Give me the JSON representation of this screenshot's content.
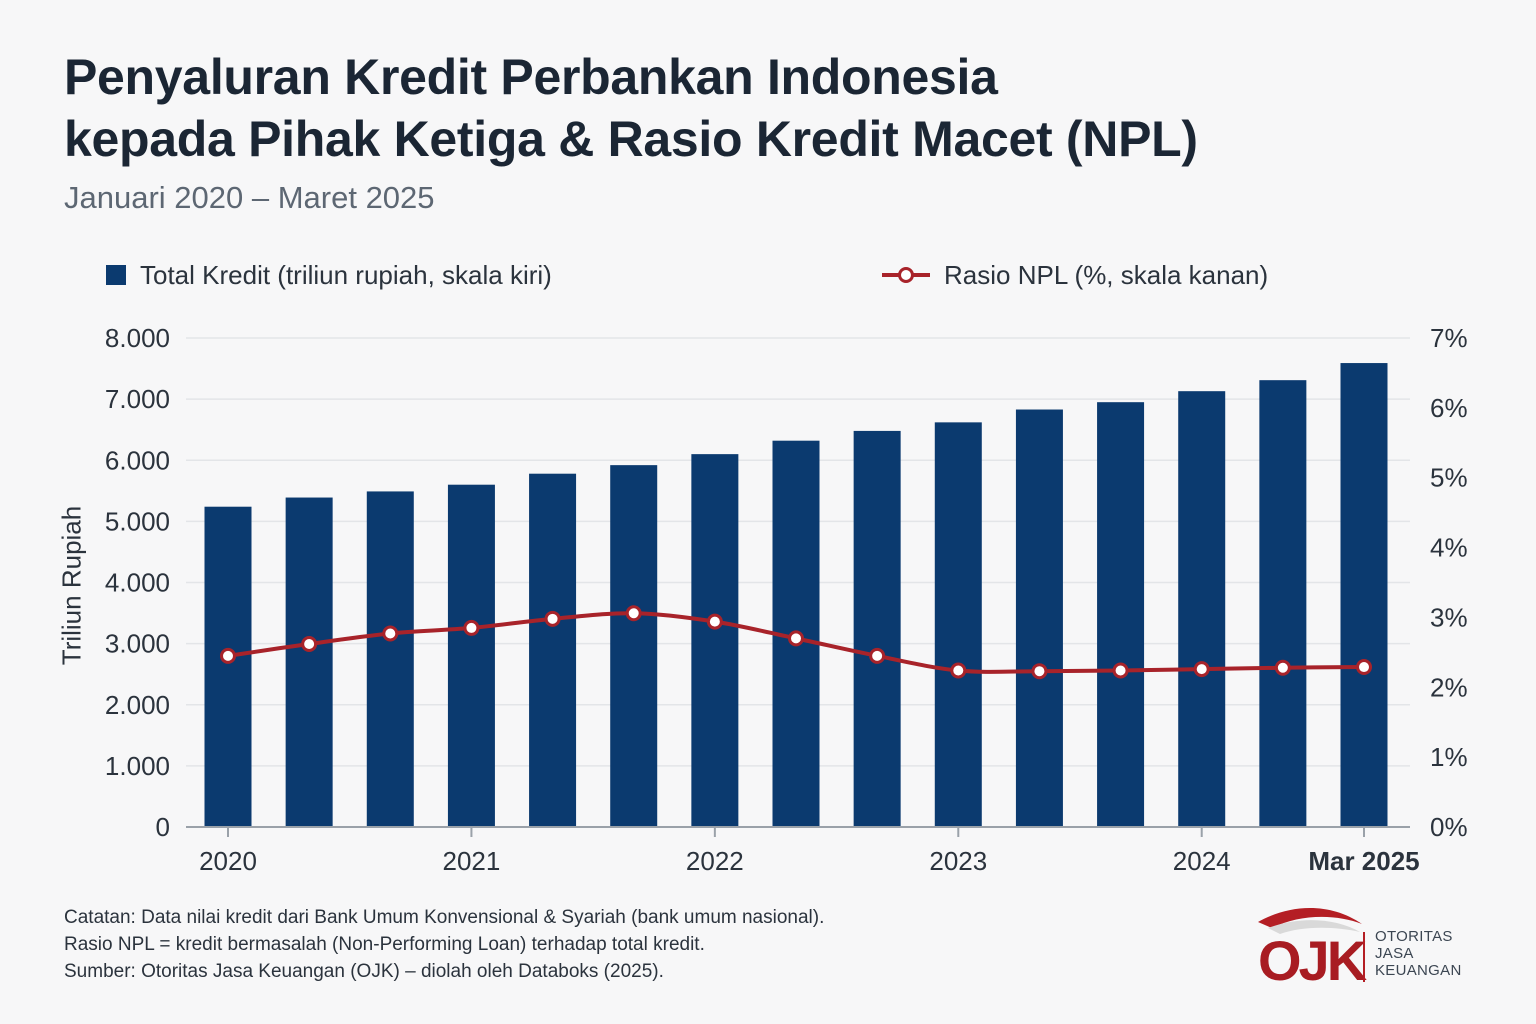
{
  "header": {
    "title_line1": "Penyaluran Kredit Perbankan Indonesia",
    "title_line2": "kepada Pihak Ketiga & Rasio Kredit Macet (NPL)",
    "subtitle": "Januari 2020 – Maret 2025"
  },
  "notes": [
    "Catatan: Data nilai kredit dari Bank Umum Konvensional & Syariah (bank umum nasional).",
    "Rasio NPL = kredit bermasalah (Non-Performing Loan) terhadap total kredit.",
    "Sumber: Otoritas Jasa Keuangan (OJK) – diolah oleh Databoks (2025)."
  ],
  "logo": {
    "mark": "OJK",
    "text_lines": [
      "OTORITAS",
      "JASA",
      "KEUANGAN"
    ],
    "colors": {
      "red": "#b41e24",
      "dark_red": "#7d0f14"
    }
  },
  "chart_data": {
    "type": "bar",
    "ylabel": "Triliun Rupiah",
    "ylim": [
      0,
      8000
    ],
    "y_ticks": [
      "0",
      "1.000",
      "2.000",
      "3.000",
      "4.000",
      "5.000",
      "6.000",
      "7.000",
      "8.000"
    ],
    "y2lim": [
      0,
      7
    ],
    "y2_ticks": [
      "0%",
      "1%",
      "2%",
      "3%",
      "4%",
      "5%",
      "6%",
      "7%"
    ],
    "x_tick_labels": [
      {
        "label": "2020",
        "index": 0
      },
      {
        "label": "2021",
        "index": 3
      },
      {
        "label": "2022",
        "index": 6
      },
      {
        "label": "2023",
        "index": 9
      },
      {
        "label": "2024",
        "index": 12
      },
      {
        "label": "Mar 2025",
        "index": 14
      }
    ],
    "grid": true,
    "legend_position": "top",
    "series": [
      {
        "name": "Total Kredit (triliun rupiah, skala kiri)",
        "type": "bar",
        "axis": "left",
        "color": "#0b3a6f",
        "values": [
          5240,
          5390,
          5490,
          5600,
          5780,
          5920,
          6100,
          6320,
          6480,
          6620,
          6830,
          6950,
          7130,
          7310,
          7590
        ]
      },
      {
        "name": "Rasio NPL (%, skala kanan)",
        "type": "line",
        "axis": "right",
        "color": "#a8232a",
        "values": [
          2.45,
          2.62,
          2.77,
          2.85,
          2.98,
          3.06,
          2.94,
          2.7,
          2.45,
          2.24,
          2.23,
          2.24,
          2.26,
          2.28,
          2.29
        ]
      }
    ]
  }
}
